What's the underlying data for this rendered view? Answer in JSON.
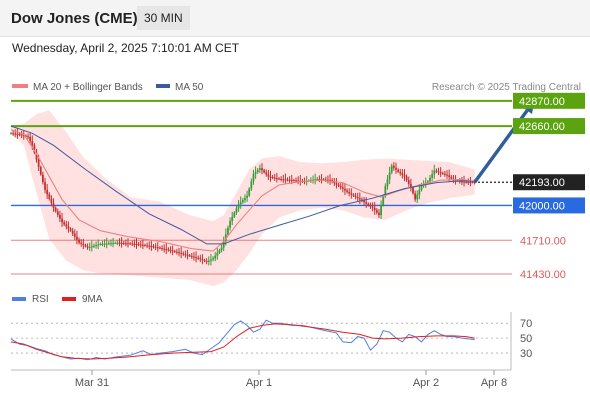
{
  "header": {
    "title": "Dow Jones (CME)",
    "interval": "30 MIN",
    "datetime": "Wednesday, April 2, 2025 7:10:01 AM CET"
  },
  "colors": {
    "resistance": "#5ba40f",
    "support": "#2a6ae0",
    "minor_support": "#e05a5a",
    "bollinger_fill": "#ffd7d7",
    "ma20": "#f08080",
    "ma50": "#3a5b9c",
    "arrow": "#2f5e99",
    "rsi": "#4f7fdf",
    "rsi_ma": "#e02020",
    "current": "#222222",
    "candle_up": "#3a9a3a",
    "candle_down": "#c03030"
  },
  "chart_data": [
    {
      "type": "candlestick",
      "legend": [
        {
          "name": "MA 20 + Bollinger Bands",
          "color": "#f08080"
        },
        {
          "name": "MA 50",
          "color": "#3a5b9c"
        }
      ],
      "watermark": "Research © 2025 Trading Central",
      "x_ticks": [
        "Mar 31",
        "Apr 1",
        "Apr 2",
        "Apr 8"
      ],
      "ylim": [
        41330,
        42960
      ],
      "levels": [
        {
          "value": 42870,
          "label": "42870.00",
          "kind": "resistance"
        },
        {
          "value": 42660,
          "label": "42660.00",
          "kind": "resistance"
        },
        {
          "value": 42193,
          "label": "42193.00",
          "kind": "current"
        },
        {
          "value": 42000,
          "label": "42000.00",
          "kind": "support"
        },
        {
          "value": 41710,
          "label": "41710.00",
          "kind": "minor_support"
        },
        {
          "value": 41430,
          "label": "41430.00",
          "kind": "minor_support"
        }
      ],
      "price_path": [
        [
          0,
          42600
        ],
        [
          4,
          42590
        ],
        [
          8,
          42570
        ],
        [
          10,
          42500
        ],
        [
          13,
          42320
        ],
        [
          16,
          42130
        ],
        [
          20,
          41980
        ],
        [
          24,
          41860
        ],
        [
          28,
          41790
        ],
        [
          32,
          41690
        ],
        [
          36,
          41650
        ],
        [
          42,
          41680
        ],
        [
          50,
          41690
        ],
        [
          58,
          41680
        ],
        [
          66,
          41660
        ],
        [
          74,
          41630
        ],
        [
          82,
          41590
        ],
        [
          88,
          41560
        ],
        [
          92,
          41530
        ],
        [
          95,
          41560
        ],
        [
          99,
          41650
        ],
        [
          103,
          41870
        ],
        [
          107,
          42010
        ],
        [
          111,
          42080
        ],
        [
          114,
          42260
        ],
        [
          117,
          42310
        ],
        [
          121,
          42240
        ],
        [
          126,
          42220
        ],
        [
          132,
          42210
        ],
        [
          138,
          42200
        ],
        [
          144,
          42220
        ],
        [
          150,
          42210
        ],
        [
          155,
          42150
        ],
        [
          159,
          42100
        ],
        [
          162,
          42070
        ],
        [
          165,
          42040
        ],
        [
          168,
          42000
        ],
        [
          170,
          41980
        ],
        [
          173,
          41920
        ],
        [
          176,
          42160
        ],
        [
          179,
          42330
        ],
        [
          182,
          42280
        ],
        [
          185,
          42240
        ],
        [
          188,
          42150
        ],
        [
          190,
          42050
        ],
        [
          193,
          42170
        ],
        [
          196,
          42200
        ],
        [
          199,
          42290
        ],
        [
          202,
          42270
        ],
        [
          205,
          42250
        ],
        [
          208,
          42210
        ],
        [
          211,
          42200
        ],
        [
          214,
          42195
        ],
        [
          218,
          42193
        ]
      ],
      "ma20": [
        [
          0,
          42630
        ],
        [
          6,
          42590
        ],
        [
          12,
          42430
        ],
        [
          18,
          42240
        ],
        [
          24,
          42050
        ],
        [
          32,
          41880
        ],
        [
          42,
          41790
        ],
        [
          55,
          41740
        ],
        [
          70,
          41700
        ],
        [
          85,
          41640
        ],
        [
          95,
          41620
        ],
        [
          100,
          41700
        ],
        [
          106,
          41840
        ],
        [
          112,
          41960
        ],
        [
          118,
          42080
        ],
        [
          126,
          42170
        ],
        [
          136,
          42200
        ],
        [
          146,
          42210
        ],
        [
          156,
          42190
        ],
        [
          166,
          42110
        ],
        [
          174,
          42070
        ],
        [
          182,
          42120
        ],
        [
          192,
          42170
        ],
        [
          202,
          42210
        ],
        [
          212,
          42215
        ],
        [
          218,
          42200
        ]
      ],
      "ma50": [
        [
          0,
          42660
        ],
        [
          10,
          42600
        ],
        [
          20,
          42500
        ],
        [
          35,
          42300
        ],
        [
          50,
          42110
        ],
        [
          65,
          41930
        ],
        [
          80,
          41800
        ],
        [
          92,
          41680
        ],
        [
          100,
          41680
        ],
        [
          112,
          41760
        ],
        [
          125,
          41830
        ],
        [
          140,
          41910
        ],
        [
          155,
          42000
        ],
        [
          170,
          42060
        ],
        [
          185,
          42140
        ],
        [
          200,
          42190
        ],
        [
          212,
          42205
        ],
        [
          218,
          42200
        ]
      ],
      "bb_upper": [
        [
          0,
          42660
        ],
        [
          6,
          42680
        ],
        [
          12,
          42760
        ],
        [
          18,
          42790
        ],
        [
          26,
          42610
        ],
        [
          34,
          42400
        ],
        [
          44,
          42230
        ],
        [
          56,
          42070
        ],
        [
          70,
          42030
        ],
        [
          84,
          41920
        ],
        [
          95,
          41870
        ],
        [
          100,
          41920
        ],
        [
          106,
          42110
        ],
        [
          112,
          42300
        ],
        [
          118,
          42390
        ],
        [
          126,
          42410
        ],
        [
          136,
          42360
        ],
        [
          146,
          42350
        ],
        [
          156,
          42360
        ],
        [
          166,
          42380
        ],
        [
          176,
          42390
        ],
        [
          186,
          42380
        ],
        [
          196,
          42370
        ],
        [
          206,
          42360
        ],
        [
          214,
          42320
        ],
        [
          218,
          42300
        ]
      ],
      "bb_lower": [
        [
          0,
          42600
        ],
        [
          6,
          42500
        ],
        [
          12,
          42100
        ],
        [
          18,
          41720
        ],
        [
          26,
          41540
        ],
        [
          34,
          41460
        ],
        [
          44,
          41430
        ],
        [
          56,
          41420
        ],
        [
          70,
          41400
        ],
        [
          84,
          41380
        ],
        [
          95,
          41330
        ],
        [
          100,
          41360
        ],
        [
          106,
          41460
        ],
        [
          112,
          41600
        ],
        [
          118,
          41760
        ],
        [
          126,
          41900
        ],
        [
          136,
          41960
        ],
        [
          146,
          41980
        ],
        [
          156,
          41960
        ],
        [
          166,
          41900
        ],
        [
          176,
          41880
        ],
        [
          186,
          41960
        ],
        [
          196,
          42020
        ],
        [
          206,
          42060
        ],
        [
          214,
          42080
        ],
        [
          218,
          42090
        ]
      ],
      "projection": {
        "from": [
          218,
          42193
        ],
        "to": [
          246,
          42870
        ]
      }
    },
    {
      "type": "line",
      "legend": [
        {
          "name": "RSI",
          "color": "#4f7fdf"
        },
        {
          "name": "9MA",
          "color": "#e02020"
        }
      ],
      "ylim": [
        10,
        85
      ],
      "y_ticks": [
        70,
        50,
        30
      ],
      "rsi": [
        [
          0,
          49
        ],
        [
          4,
          42
        ],
        [
          8,
          40
        ],
        [
          12,
          36
        ],
        [
          16,
          33
        ],
        [
          20,
          28
        ],
        [
          24,
          25
        ],
        [
          28,
          22
        ],
        [
          32,
          23
        ],
        [
          36,
          21
        ],
        [
          40,
          24
        ],
        [
          44,
          22
        ],
        [
          50,
          25
        ],
        [
          56,
          27
        ],
        [
          62,
          33
        ],
        [
          66,
          28
        ],
        [
          70,
          30
        ],
        [
          76,
          32
        ],
        [
          82,
          35
        ],
        [
          86,
          30
        ],
        [
          90,
          28
        ],
        [
          94,
          36
        ],
        [
          98,
          44
        ],
        [
          102,
          58
        ],
        [
          105,
          68
        ],
        [
          108,
          73
        ],
        [
          111,
          67
        ],
        [
          114,
          58
        ],
        [
          117,
          62
        ],
        [
          120,
          74
        ],
        [
          123,
          70
        ],
        [
          127,
          70
        ],
        [
          132,
          67
        ],
        [
          137,
          67
        ],
        [
          142,
          64
        ],
        [
          148,
          60
        ],
        [
          153,
          57
        ],
        [
          156,
          45
        ],
        [
          160,
          44
        ],
        [
          163,
          52
        ],
        [
          166,
          50
        ],
        [
          169,
          34
        ],
        [
          172,
          42
        ],
        [
          175,
          60
        ],
        [
          178,
          58
        ],
        [
          181,
          50
        ],
        [
          184,
          45
        ],
        [
          187,
          55
        ],
        [
          190,
          52
        ],
        [
          193,
          45
        ],
        [
          196,
          55
        ],
        [
          199,
          60
        ],
        [
          202,
          55
        ],
        [
          205,
          52
        ],
        [
          208,
          52
        ],
        [
          212,
          50
        ],
        [
          218,
          48
        ]
      ],
      "rsi_ma": [
        [
          0,
          45
        ],
        [
          6,
          42
        ],
        [
          12,
          35
        ],
        [
          18,
          30
        ],
        [
          24,
          25
        ],
        [
          30,
          23
        ],
        [
          38,
          22
        ],
        [
          46,
          23
        ],
        [
          56,
          25
        ],
        [
          66,
          28
        ],
        [
          76,
          30
        ],
        [
          86,
          31
        ],
        [
          94,
          32
        ],
        [
          100,
          38
        ],
        [
          106,
          52
        ],
        [
          112,
          63
        ],
        [
          118,
          67
        ],
        [
          124,
          69
        ],
        [
          132,
          68
        ],
        [
          140,
          65
        ],
        [
          148,
          62
        ],
        [
          156,
          58
        ],
        [
          164,
          55
        ],
        [
          170,
          50
        ],
        [
          176,
          49
        ],
        [
          184,
          50
        ],
        [
          192,
          52
        ],
        [
          200,
          53
        ],
        [
          208,
          53
        ],
        [
          214,
          52
        ],
        [
          218,
          50
        ]
      ]
    }
  ]
}
